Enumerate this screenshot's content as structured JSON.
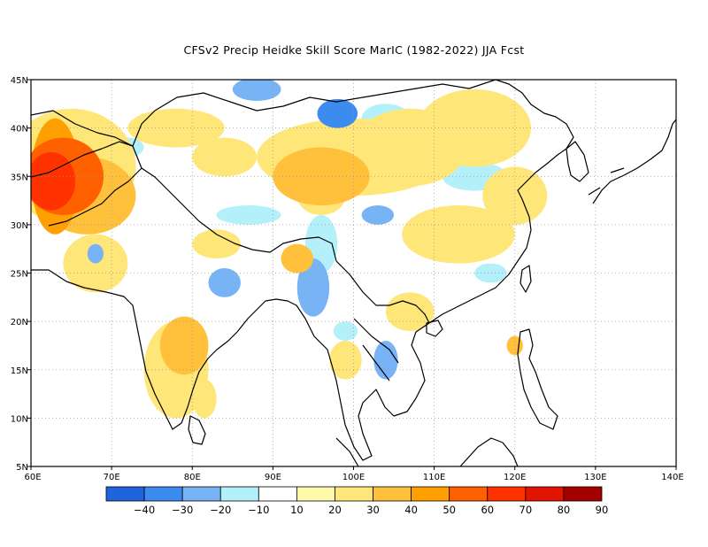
{
  "title": "CFSv2 Precip Heidke Skill Score MarIC (1982-2022) JJA Fcst",
  "lon_range": [
    60,
    140
  ],
  "lat_range": [
    5,
    45
  ],
  "lon_ticks": [
    "60E",
    "70E",
    "80E",
    "90E",
    "100E",
    "110E",
    "120E",
    "130E",
    "140E"
  ],
  "lat_ticks": [
    "5N",
    "10N",
    "15N",
    "20N",
    "25N",
    "30N",
    "35N",
    "40N",
    "45N"
  ],
  "colorbar": {
    "colors": [
      "#1e64dc",
      "#3c8cf0",
      "#78b4f5",
      "#b4f0fa",
      "#ffffff",
      "#fffaaa",
      "#ffe678",
      "#ffc03c",
      "#ffa000",
      "#ff6000",
      "#ff3200",
      "#e11400",
      "#a50000"
    ],
    "labels": [
      "-40",
      "-30",
      "-20",
      "-10",
      "10",
      "20",
      "30",
      "40",
      "50",
      "60",
      "70",
      "80",
      "90"
    ]
  },
  "anomaly_patches": [
    {
      "lon": 62.5,
      "lat": 34.5,
      "rx": 3.0,
      "ry": 3.0,
      "value": 60
    },
    {
      "lon": 64,
      "lat": 35,
      "rx": 5,
      "ry": 4,
      "value": 50
    },
    {
      "lon": 63,
      "lat": 35,
      "rx": 3,
      "ry": 6,
      "value": 40
    },
    {
      "lon": 67,
      "lat": 33,
      "rx": 6,
      "ry": 4,
      "value": 30
    },
    {
      "lon": 65,
      "lat": 36,
      "rx": 8,
      "ry": 6,
      "value": 20
    },
    {
      "lon": 96,
      "lat": 35,
      "rx": 6,
      "ry": 3,
      "value": 30
    },
    {
      "lon": 100,
      "lat": 37,
      "rx": 12,
      "ry": 4,
      "value": 20
    },
    {
      "lon": 107,
      "lat": 38,
      "rx": 7,
      "ry": 4,
      "value": 20
    },
    {
      "lon": 115,
      "lat": 40,
      "rx": 7,
      "ry": 4,
      "value": 20
    },
    {
      "lon": 120,
      "lat": 33,
      "rx": 4,
      "ry": 3,
      "value": 20
    },
    {
      "lon": 113,
      "lat": 29,
      "rx": 7,
      "ry": 3,
      "value": 20
    },
    {
      "lon": 78,
      "lat": 40,
      "rx": 6,
      "ry": 2,
      "value": 20
    },
    {
      "lon": 84,
      "lat": 37,
      "rx": 4,
      "ry": 2,
      "value": 20
    },
    {
      "lon": 93,
      "lat": 26.5,
      "rx": 2,
      "ry": 1.5,
      "value": 30
    },
    {
      "lon": 83,
      "lat": 28,
      "rx": 3,
      "ry": 1.5,
      "value": 20
    },
    {
      "lon": 68,
      "lat": 26,
      "rx": 4,
      "ry": 3,
      "value": 20
    },
    {
      "lon": 79,
      "lat": 17.5,
      "rx": 3,
      "ry": 3,
      "value": 30
    },
    {
      "lon": 78,
      "lat": 15,
      "rx": 4,
      "ry": 5,
      "value": 20
    },
    {
      "lon": 81.5,
      "lat": 12,
      "rx": 1.5,
      "ry": 2,
      "value": 20
    },
    {
      "lon": 120,
      "lat": 17.5,
      "rx": 1,
      "ry": 1,
      "value": 30
    },
    {
      "lon": 96,
      "lat": 33,
      "rx": 3,
      "ry": 2,
      "value": 20
    },
    {
      "lon": 107,
      "lat": 21,
      "rx": 3,
      "ry": 2,
      "value": 20
    },
    {
      "lon": 99,
      "lat": 16,
      "rx": 2,
      "ry": 2,
      "value": 20
    },
    {
      "lon": 98,
      "lat": 41.5,
      "rx": 2.5,
      "ry": 1.5,
      "value": -30
    },
    {
      "lon": 88,
      "lat": 44,
      "rx": 3,
      "ry": 1.2,
      "value": -20
    },
    {
      "lon": 104,
      "lat": 41,
      "rx": 3,
      "ry": 1.5,
      "value": -10
    },
    {
      "lon": 103,
      "lat": 31,
      "rx": 2,
      "ry": 1,
      "value": -20
    },
    {
      "lon": 95,
      "lat": 23.5,
      "rx": 2,
      "ry": 3,
      "value": -20
    },
    {
      "lon": 84,
      "lat": 24,
      "rx": 2,
      "ry": 1.5,
      "value": -20
    },
    {
      "lon": 68,
      "lat": 27,
      "rx": 1,
      "ry": 1,
      "value": -20
    },
    {
      "lon": 104,
      "lat": 16,
      "rx": 1.5,
      "ry": 2,
      "value": -20
    },
    {
      "lon": 99,
      "lat": 19,
      "rx": 1.5,
      "ry": 1,
      "value": -10
    },
    {
      "lon": 115,
      "lat": 35,
      "rx": 4,
      "ry": 1.5,
      "value": -10
    },
    {
      "lon": 117,
      "lat": 25,
      "rx": 2,
      "ry": 1,
      "value": -10
    },
    {
      "lon": 96,
      "lat": 28,
      "rx": 2,
      "ry": 3,
      "value": -10
    },
    {
      "lon": 87,
      "lat": 31,
      "rx": 4,
      "ry": 1,
      "value": -10
    },
    {
      "lon": 72,
      "lat": 38,
      "rx": 2,
      "ry": 1,
      "value": -10
    },
    {
      "lon": 63,
      "lat": 40,
      "rx": 2,
      "ry": 1,
      "value": -10
    }
  ]
}
